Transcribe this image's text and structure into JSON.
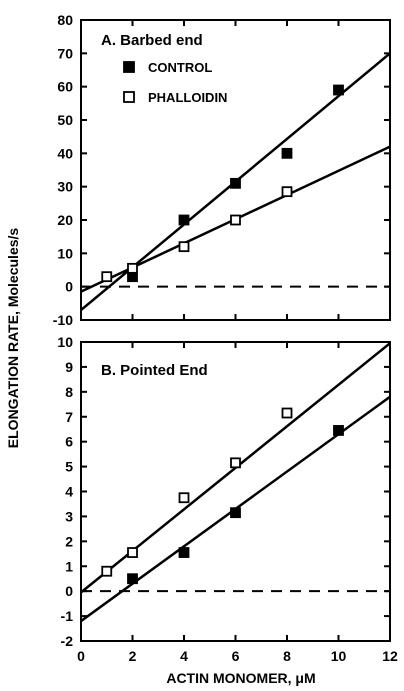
{
  "chart_data": [
    {
      "type": "scatter",
      "panel": "A",
      "title": "A. Barbed end",
      "xlim": [
        0,
        12
      ],
      "ylim": [
        -10,
        80
      ],
      "yticks": [
        -10,
        0,
        10,
        20,
        30,
        40,
        50,
        60,
        70,
        80
      ],
      "legend": {
        "position": "upper-left",
        "entries": [
          "CONTROL",
          "PHALLOIDIN"
        ]
      },
      "baseline": {
        "y": 0,
        "style": "dashed"
      },
      "series": [
        {
          "name": "CONTROL",
          "marker": "filled-square",
          "x": [
            2,
            4,
            6,
            8,
            10
          ],
          "y": [
            3,
            20,
            31,
            40,
            59
          ],
          "fit_line": {
            "x": [
              0,
              12
            ],
            "y": [
              -7,
              70
            ]
          }
        },
        {
          "name": "PHALLOIDIN",
          "marker": "open-square",
          "x": [
            1,
            2,
            4,
            6,
            8
          ],
          "y": [
            3,
            5.5,
            12,
            20,
            28.5
          ],
          "fit_line": {
            "x": [
              0,
              12
            ],
            "y": [
              -1.5,
              42
            ]
          }
        }
      ]
    },
    {
      "type": "scatter",
      "panel": "B",
      "title": "B. Pointed End",
      "xlim": [
        0,
        12
      ],
      "ylim": [
        -2,
        10
      ],
      "yticks": [
        -2,
        -1,
        0,
        1,
        2,
        3,
        4,
        5,
        6,
        7,
        8,
        9,
        10
      ],
      "baseline": {
        "y": 0,
        "style": "dashed"
      },
      "series": [
        {
          "name": "CONTROL",
          "marker": "filled-square",
          "x": [
            2,
            4,
            6,
            10
          ],
          "y": [
            0.5,
            1.55,
            3.15,
            6.45
          ],
          "fit_line": {
            "x": [
              0,
              12
            ],
            "y": [
              -1.2,
              7.8
            ]
          }
        },
        {
          "name": "PHALLOIDIN",
          "marker": "open-square",
          "x": [
            1,
            2,
            4,
            6,
            8
          ],
          "y": [
            0.8,
            1.55,
            3.75,
            5.15,
            7.15
          ],
          "fit_line": {
            "x": [
              0,
              12
            ],
            "y": [
              -0.05,
              9.95
            ]
          }
        }
      ]
    }
  ],
  "xticks": [
    0,
    2,
    4,
    6,
    8,
    10,
    12
  ],
  "xlabel": "ACTIN MONOMER, μM",
  "ylabel": "ELONGATION RATE, Molecules/s"
}
